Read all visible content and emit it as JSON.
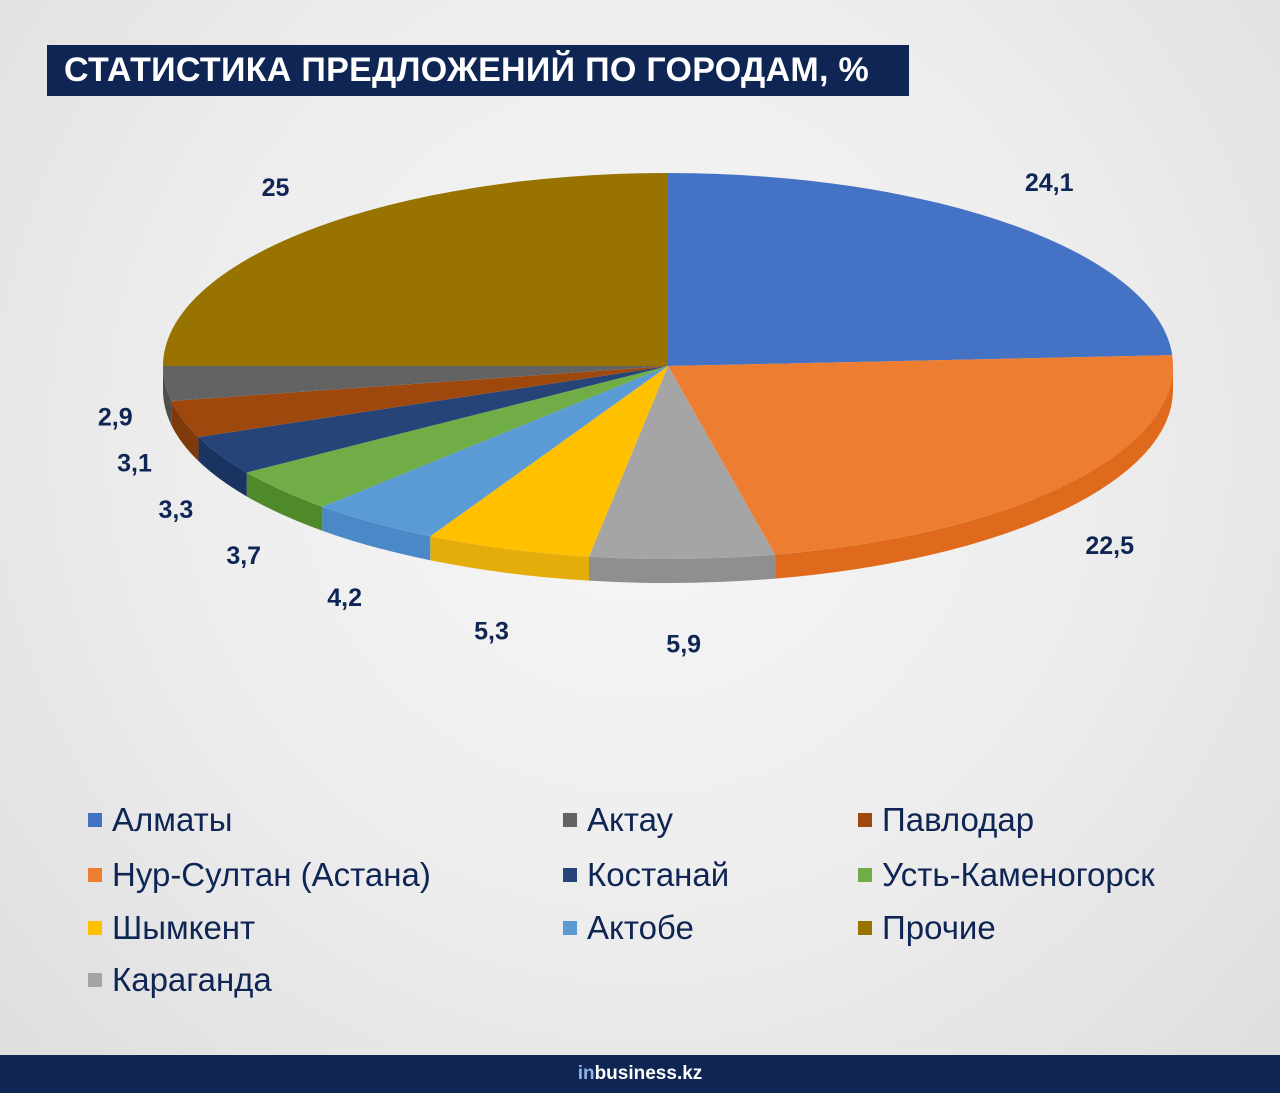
{
  "title": "СТАТИСТИКА ПРЕДЛОЖЕНИЙ ПО ГОРОДАМ, %",
  "brand": {
    "prefix": "in",
    "name": "business.kz"
  },
  "chart_data": {
    "type": "pie",
    "style": "3d-tilted",
    "title": "СТАТИСТИКА ПРЕДЛОЖЕНИЙ ПО ГОРОДАМ, %",
    "unit": "%",
    "start": "12 o'clock, clockwise",
    "slices": [
      {
        "name": "Алматы",
        "value": 24.1,
        "label": "24,1",
        "color": "#4472c4",
        "side": "#3a62a8"
      },
      {
        "name": "Нур-Султан (Астана)",
        "value": 22.5,
        "label": "22,5",
        "color": "#ed7d31",
        "side": "#e06a1c"
      },
      {
        "name": "Караганда",
        "value": 5.9,
        "label": "5,9",
        "color": "#a5a5a5",
        "side": "#8f8f8f"
      },
      {
        "name": "Шымкент",
        "value": 5.3,
        "label": "5,3",
        "color": "#ffc000",
        "side": "#e4ad0a"
      },
      {
        "name": "Актобе",
        "value": 4.2,
        "label": "4,2",
        "color": "#5b9bd5",
        "side": "#4a88c8"
      },
      {
        "name": "Усть-Каменогорск",
        "value": 3.7,
        "label": "3,7",
        "color": "#70ad47",
        "side": "#4f8a2a"
      },
      {
        "name": "Костанай",
        "value": 3.3,
        "label": "3,3",
        "color": "#264478",
        "side": "#1b3360"
      },
      {
        "name": "Павлодар",
        "value": 3.1,
        "label": "3,1",
        "color": "#9e480e",
        "side": "#7f3a0b"
      },
      {
        "name": "Актау",
        "value": 2.9,
        "label": "2,9",
        "color": "#636363",
        "side": "#4d4d4d"
      },
      {
        "name": "Прочие",
        "value": 25,
        "label": "25",
        "color": "#997300",
        "side": "#7d5e00"
      }
    ],
    "legend_position": "bottom",
    "legend_columns": [
      [
        "Алматы",
        "Нур-Султан (Астана)",
        "Шымкент",
        "Караганда"
      ],
      [
        "Актау",
        "Костанай",
        "Актобе"
      ],
      [
        "Павлодар",
        "Усть-Каменогорск",
        "Прочие"
      ]
    ]
  }
}
